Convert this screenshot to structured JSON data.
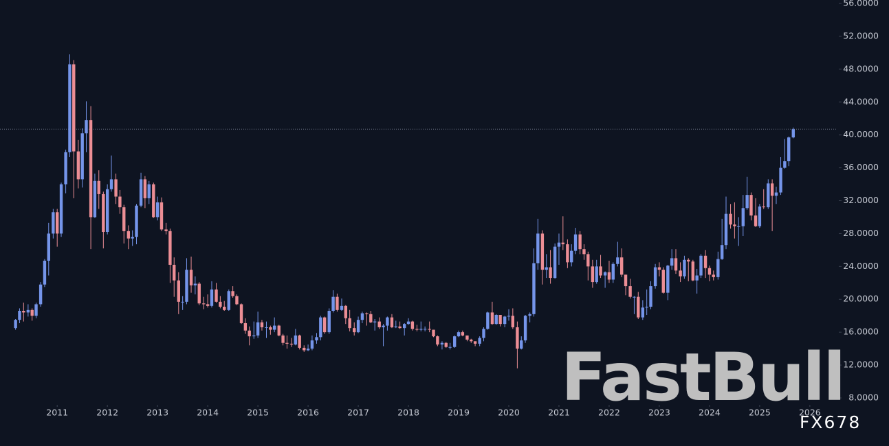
{
  "chart_data": {
    "type": "candlestick",
    "background": "#0e1421",
    "up_color": "#7595ea",
    "down_color": "#ec8e95",
    "watermark": "FastBull",
    "source": "FX678",
    "price_line": 40.7,
    "xlim": [
      2009.86,
      2026.55
    ],
    "xticks": [
      2011,
      2012,
      2013,
      2014,
      2015,
      2016,
      2017,
      2018,
      2019,
      2020,
      2021,
      2022,
      2023,
      2024,
      2025,
      2026
    ],
    "ylim": [
      7.33,
      56.42
    ],
    "yticks": [
      {
        "value": 8,
        "label": "8.0000"
      },
      {
        "value": 12,
        "label": "12.0000"
      },
      {
        "value": 16,
        "label": "16.0000"
      },
      {
        "value": 20,
        "label": "20.0000"
      },
      {
        "value": 24,
        "label": "24.0000"
      },
      {
        "value": 28,
        "label": "28.0000"
      },
      {
        "value": 32,
        "label": "32.0000"
      },
      {
        "value": 36,
        "label": "36.0000"
      },
      {
        "value": 40,
        "label": "40.0000"
      },
      {
        "value": 44,
        "label": "44.0000"
      },
      {
        "value": 48,
        "label": "48.0000"
      },
      {
        "value": 52,
        "label": "52.0000"
      },
      {
        "value": 56,
        "label": "56.0000"
      }
    ],
    "x": [
      2010.17,
      2010.25,
      2010.33,
      2010.42,
      2010.5,
      2010.58,
      2010.67,
      2010.75,
      2010.83,
      2010.92,
      2011,
      2011.08,
      2011.17,
      2011.25,
      2011.33,
      2011.42,
      2011.5,
      2011.58,
      2011.67,
      2011.75,
      2011.83,
      2011.92,
      2012,
      2012.08,
      2012.17,
      2012.25,
      2012.33,
      2012.42,
      2012.5,
      2012.58,
      2012.67,
      2012.75,
      2012.83,
      2012.92,
      2013,
      2013.08,
      2013.17,
      2013.25,
      2013.33,
      2013.42,
      2013.5,
      2013.58,
      2013.67,
      2013.75,
      2013.83,
      2013.92,
      2014,
      2014.08,
      2014.17,
      2014.25,
      2014.33,
      2014.42,
      2014.5,
      2014.58,
      2014.67,
      2014.75,
      2014.83,
      2014.92,
      2015,
      2015.08,
      2015.17,
      2015.25,
      2015.33,
      2015.42,
      2015.5,
      2015.58,
      2015.67,
      2015.75,
      2015.83,
      2015.92,
      2016,
      2016.08,
      2016.17,
      2016.25,
      2016.33,
      2016.42,
      2016.5,
      2016.58,
      2016.67,
      2016.75,
      2016.83,
      2016.92,
      2017,
      2017.08,
      2017.17,
      2017.25,
      2017.33,
      2017.42,
      2017.5,
      2017.58,
      2017.67,
      2017.75,
      2017.83,
      2017.92,
      2018,
      2018.08,
      2018.17,
      2018.25,
      2018.33,
      2018.42,
      2018.5,
      2018.58,
      2018.67,
      2018.75,
      2018.83,
      2018.92,
      2019,
      2019.08,
      2019.17,
      2019.25,
      2019.33,
      2019.42,
      2019.5,
      2019.58,
      2019.67,
      2019.75,
      2019.83,
      2019.92,
      2020,
      2020.08,
      2020.17,
      2020.25,
      2020.33,
      2020.42,
      2020.5,
      2020.58,
      2020.67,
      2020.75,
      2020.83,
      2020.92,
      2021,
      2021.08,
      2021.17,
      2021.25,
      2021.33,
      2021.42,
      2021.5,
      2021.58,
      2021.67,
      2021.75,
      2021.83,
      2021.92,
      2022,
      2022.08,
      2022.17,
      2022.25,
      2022.33,
      2022.42,
      2022.5,
      2022.58,
      2022.67,
      2022.75,
      2022.83,
      2022.92,
      2023,
      2023.08,
      2023.17,
      2023.25,
      2023.33,
      2023.42,
      2023.5,
      2023.58,
      2023.67,
      2023.75,
      2023.83,
      2023.92,
      2024,
      2024.08,
      2024.17,
      2024.25,
      2024.33,
      2024.42,
      2024.5,
      2024.58,
      2024.67,
      2024.75,
      2024.83,
      2024.92,
      2025,
      2025.08,
      2025.17,
      2025.25,
      2025.33,
      2025.42,
      2025.5,
      2025.58,
      2025.67
    ],
    "candles": [
      [
        16.5,
        17.6,
        16.3,
        17.5
      ],
      [
        17.5,
        18.9,
        17.1,
        18.6
      ],
      [
        18.6,
        19.6,
        17.3,
        18.4
      ],
      [
        18.4,
        19.4,
        17.9,
        18.7
      ],
      [
        18.7,
        18.9,
        17.4,
        18.0
      ],
      [
        18.0,
        19.6,
        17.7,
        19.4
      ],
      [
        19.4,
        22.1,
        19.1,
        21.8
      ],
      [
        21.8,
        24.9,
        21.5,
        24.7
      ],
      [
        24.7,
        29.3,
        22.9,
        28.0
      ],
      [
        28.0,
        31.0,
        27.4,
        30.6
      ],
      [
        30.6,
        31.0,
        26.4,
        28.0
      ],
      [
        28.0,
        34.2,
        27.6,
        34.0
      ],
      [
        34.0,
        38.2,
        32.9,
        37.9
      ],
      [
        37.9,
        49.8,
        37.3,
        48.6
      ],
      [
        48.6,
        49.1,
        32.3,
        38.0
      ],
      [
        38.0,
        39.4,
        33.5,
        34.6
      ],
      [
        34.6,
        40.8,
        33.6,
        40.2
      ],
      [
        40.2,
        44.1,
        37.9,
        41.8
      ],
      [
        41.8,
        43.5,
        26.1,
        30.0
      ],
      [
        30.0,
        35.3,
        29.9,
        34.4
      ],
      [
        34.4,
        35.7,
        31.0,
        32.8
      ],
      [
        32.8,
        33.1,
        26.2,
        28.2
      ],
      [
        28.2,
        34.0,
        27.9,
        33.4
      ],
      [
        33.4,
        37.5,
        33.1,
        34.6
      ],
      [
        34.6,
        35.3,
        31.6,
        32.5
      ],
      [
        32.5,
        33.3,
        30.4,
        31.2
      ],
      [
        31.2,
        31.5,
        26.8,
        28.3
      ],
      [
        28.3,
        29.0,
        26.1,
        27.4
      ],
      [
        27.4,
        28.4,
        26.5,
        27.6
      ],
      [
        27.6,
        31.6,
        26.7,
        31.4
      ],
      [
        31.4,
        35.4,
        31.2,
        34.6
      ],
      [
        34.6,
        35.0,
        31.1,
        32.3
      ],
      [
        32.3,
        34.4,
        31.6,
        34.0
      ],
      [
        34.0,
        34.2,
        29.9,
        30.0
      ],
      [
        30.0,
        32.5,
        29.6,
        31.8
      ],
      [
        31.8,
        32.4,
        28.3,
        28.5
      ],
      [
        28.5,
        29.3,
        27.9,
        28.3
      ],
      [
        28.3,
        28.6,
        22.0,
        24.2
      ],
      [
        24.2,
        25.1,
        20.3,
        22.3
      ],
      [
        22.3,
        23.3,
        18.2,
        19.7
      ],
      [
        19.7,
        20.4,
        18.7,
        19.7
      ],
      [
        19.7,
        25.0,
        19.4,
        23.6
      ],
      [
        23.6,
        25.2,
        20.8,
        21.7
      ],
      [
        21.7,
        22.8,
        20.6,
        21.9
      ],
      [
        21.9,
        22.1,
        19.3,
        19.5
      ],
      [
        19.5,
        20.3,
        18.8,
        19.4
      ],
      [
        19.4,
        20.6,
        19.0,
        19.2
      ],
      [
        19.2,
        22.2,
        19.0,
        21.2
      ],
      [
        21.2,
        22.0,
        19.6,
        19.7
      ],
      [
        19.7,
        20.4,
        18.9,
        19.1
      ],
      [
        19.1,
        19.8,
        18.6,
        18.7
      ],
      [
        18.7,
        21.2,
        18.6,
        21.0
      ],
      [
        21.0,
        21.6,
        20.2,
        20.4
      ],
      [
        20.4,
        20.6,
        19.3,
        19.4
      ],
      [
        19.4,
        19.5,
        17.0,
        17.1
      ],
      [
        17.1,
        17.7,
        15.8,
        16.2
      ],
      [
        16.2,
        16.7,
        14.4,
        15.5
      ],
      [
        15.5,
        17.3,
        15.2,
        15.6
      ],
      [
        15.6,
        18.5,
        15.3,
        17.2
      ],
      [
        17.2,
        17.5,
        16.2,
        16.6
      ],
      [
        16.6,
        17.3,
        15.3,
        16.6
      ],
      [
        16.6,
        16.8,
        15.7,
        16.3
      ],
      [
        16.3,
        17.8,
        16.0,
        16.8
      ],
      [
        16.8,
        16.9,
        15.5,
        15.6
      ],
      [
        15.6,
        15.8,
        14.4,
        14.7
      ],
      [
        14.7,
        15.6,
        14.0,
        14.6
      ],
      [
        14.6,
        15.3,
        14.2,
        14.5
      ],
      [
        14.5,
        16.4,
        14.4,
        15.6
      ],
      [
        15.6,
        15.7,
        13.9,
        14.1
      ],
      [
        14.1,
        14.4,
        13.6,
        13.8
      ],
      [
        13.8,
        14.5,
        13.7,
        14.0
      ],
      [
        14.0,
        15.6,
        13.8,
        15.0
      ],
      [
        15.0,
        15.9,
        14.6,
        15.4
      ],
      [
        15.4,
        18.0,
        15.0,
        17.8
      ],
      [
        17.8,
        17.9,
        15.8,
        16.0
      ],
      [
        16.0,
        18.9,
        15.8,
        18.6
      ],
      [
        18.6,
        21.1,
        18.4,
        20.3
      ],
      [
        20.3,
        20.7,
        18.5,
        18.7
      ],
      [
        18.7,
        20.1,
        18.6,
        19.2
      ],
      [
        19.2,
        19.3,
        17.0,
        17.7
      ],
      [
        17.7,
        18.7,
        16.1,
        16.5
      ],
      [
        16.5,
        17.2,
        15.6,
        16.0
      ],
      [
        16.0,
        17.9,
        15.9,
        17.5
      ],
      [
        17.5,
        18.5,
        17.1,
        18.3
      ],
      [
        18.3,
        18.4,
        16.8,
        18.2
      ],
      [
        18.2,
        18.6,
        17.1,
        17.2
      ],
      [
        17.2,
        17.6,
        16.2,
        17.3
      ],
      [
        17.3,
        17.8,
        16.4,
        16.6
      ],
      [
        16.6,
        17.0,
        14.3,
        16.8
      ],
      [
        16.8,
        17.9,
        16.2,
        17.8
      ],
      [
        17.8,
        18.2,
        16.5,
        16.6
      ],
      [
        16.6,
        17.4,
        16.5,
        16.7
      ],
      [
        16.7,
        17.3,
        16.4,
        16.5
      ],
      [
        16.5,
        17.1,
        15.6,
        17.0
      ],
      [
        17.0,
        17.7,
        16.9,
        17.3
      ],
      [
        17.3,
        17.4,
        16.2,
        16.4
      ],
      [
        16.4,
        16.9,
        16.1,
        16.3
      ],
      [
        16.3,
        17.3,
        16.1,
        16.4
      ],
      [
        16.4,
        16.7,
        16.1,
        16.4
      ],
      [
        16.4,
        17.3,
        16.0,
        16.3
      ],
      [
        16.3,
        16.3,
        15.4,
        15.5
      ],
      [
        15.5,
        15.6,
        14.3,
        14.5
      ],
      [
        14.5,
        14.9,
        13.9,
        14.7
      ],
      [
        14.7,
        14.8,
        14.1,
        14.2
      ],
      [
        14.2,
        14.7,
        13.9,
        14.2
      ],
      [
        14.2,
        15.6,
        14.1,
        15.5
      ],
      [
        15.5,
        16.2,
        15.4,
        16.0
      ],
      [
        16.0,
        16.2,
        15.5,
        15.6
      ],
      [
        15.6,
        15.6,
        14.9,
        15.1
      ],
      [
        15.1,
        15.2,
        14.7,
        14.9
      ],
      [
        14.9,
        14.9,
        14.3,
        14.6
      ],
      [
        14.6,
        15.5,
        14.3,
        15.3
      ],
      [
        15.3,
        16.6,
        14.9,
        16.4
      ],
      [
        16.4,
        18.5,
        16.3,
        18.4
      ],
      [
        18.4,
        19.7,
        16.9,
        17.0
      ],
      [
        17.0,
        18.2,
        16.9,
        18.1
      ],
      [
        18.1,
        18.1,
        16.7,
        17.0
      ],
      [
        17.0,
        18.0,
        16.6,
        17.9
      ],
      [
        17.9,
        18.8,
        17.4,
        18.0
      ],
      [
        18.0,
        18.9,
        16.4,
        16.6
      ],
      [
        16.6,
        17.3,
        11.6,
        14.0
      ],
      [
        14.0,
        15.5,
        13.9,
        15.0
      ],
      [
        15.0,
        18.1,
        14.7,
        18.0
      ],
      [
        18.0,
        18.4,
        17.2,
        18.2
      ],
      [
        18.2,
        26.2,
        17.9,
        24.4
      ],
      [
        24.4,
        29.8,
        23.6,
        28.0
      ],
      [
        28.0,
        28.4,
        21.8,
        23.6
      ],
      [
        23.6,
        25.5,
        22.6,
        23.9
      ],
      [
        23.9,
        26.0,
        21.9,
        22.6
      ],
      [
        22.6,
        26.8,
        22.5,
        26.4
      ],
      [
        26.4,
        28.0,
        24.2,
        26.9
      ],
      [
        26.9,
        30.1,
        26.0,
        26.7
      ],
      [
        26.7,
        27.3,
        23.8,
        24.5
      ],
      [
        24.5,
        26.7,
        24.0,
        25.9
      ],
      [
        25.9,
        28.7,
        25.5,
        27.9
      ],
      [
        27.9,
        28.3,
        25.5,
        26.1
      ],
      [
        26.1,
        26.7,
        24.8,
        25.5
      ],
      [
        25.5,
        25.8,
        22.3,
        24.0
      ],
      [
        24.0,
        24.8,
        21.4,
        22.1
      ],
      [
        22.1,
        24.8,
        21.9,
        24.0
      ],
      [
        24.0,
        25.4,
        22.6,
        22.9
      ],
      [
        22.9,
        23.4,
        21.4,
        23.3
      ],
      [
        23.3,
        24.7,
        22.0,
        22.4
      ],
      [
        22.4,
        24.5,
        22.0,
        24.3
      ],
      [
        24.3,
        27.0,
        24.0,
        25.1
      ],
      [
        25.1,
        26.2,
        22.7,
        23.0
      ],
      [
        23.0,
        23.0,
        20.5,
        21.6
      ],
      [
        21.6,
        22.5,
        20.1,
        20.3
      ],
      [
        20.3,
        20.4,
        18.2,
        20.3
      ],
      [
        20.3,
        20.9,
        17.6,
        17.8
      ],
      [
        17.8,
        19.9,
        17.5,
        19.0
      ],
      [
        19.0,
        21.2,
        18.1,
        19.1
      ],
      [
        19.1,
        22.2,
        18.8,
        21.6
      ],
      [
        21.6,
        24.3,
        21.3,
        23.9
      ],
      [
        23.9,
        24.5,
        22.8,
        23.6
      ],
      [
        23.6,
        23.9,
        20.7,
        20.8
      ],
      [
        20.8,
        24.2,
        19.9,
        24.1
      ],
      [
        24.1,
        26.1,
        23.6,
        25.0
      ],
      [
        25.0,
        26.1,
        23.1,
        23.5
      ],
      [
        23.5,
        24.5,
        22.1,
        22.8
      ],
      [
        22.8,
        25.3,
        22.5,
        24.8
      ],
      [
        24.8,
        25.0,
        22.2,
        24.6
      ],
      [
        24.6,
        24.8,
        22.2,
        22.3
      ],
      [
        22.3,
        23.7,
        20.7,
        22.9
      ],
      [
        22.9,
        25.5,
        22.6,
        25.3
      ],
      [
        25.3,
        26.0,
        22.6,
        23.8
      ],
      [
        23.8,
        24.1,
        22.2,
        23.0
      ],
      [
        23.0,
        23.5,
        22.3,
        22.7
      ],
      [
        22.7,
        25.8,
        22.4,
        24.9
      ],
      [
        24.9,
        29.8,
        24.8,
        26.6
      ],
      [
        26.6,
        32.5,
        26.1,
        30.4
      ],
      [
        30.4,
        31.6,
        28.6,
        29.1
      ],
      [
        29.1,
        31.8,
        27.4,
        28.9
      ],
      [
        28.9,
        30.0,
        26.5,
        28.9
      ],
      [
        28.9,
        32.7,
        27.7,
        31.1
      ],
      [
        31.1,
        34.9,
        30.9,
        32.7
      ],
      [
        32.7,
        33.0,
        29.6,
        30.2
      ],
      [
        30.2,
        32.3,
        28.8,
        28.9
      ],
      [
        28.9,
        31.6,
        28.7,
        31.3
      ],
      [
        31.3,
        33.4,
        31.0,
        31.2
      ],
      [
        31.2,
        34.6,
        31.0,
        34.1
      ],
      [
        34.1,
        34.6,
        28.3,
        32.6
      ],
      [
        32.6,
        33.7,
        31.6,
        33.0
      ],
      [
        33.0,
        37.3,
        32.7,
        36.0
      ],
      [
        36.0,
        39.5,
        35.9,
        36.8
      ],
      [
        36.8,
        39.8,
        36.2,
        39.7
      ],
      [
        39.7,
        40.9,
        39.6,
        40.7
      ]
    ]
  }
}
